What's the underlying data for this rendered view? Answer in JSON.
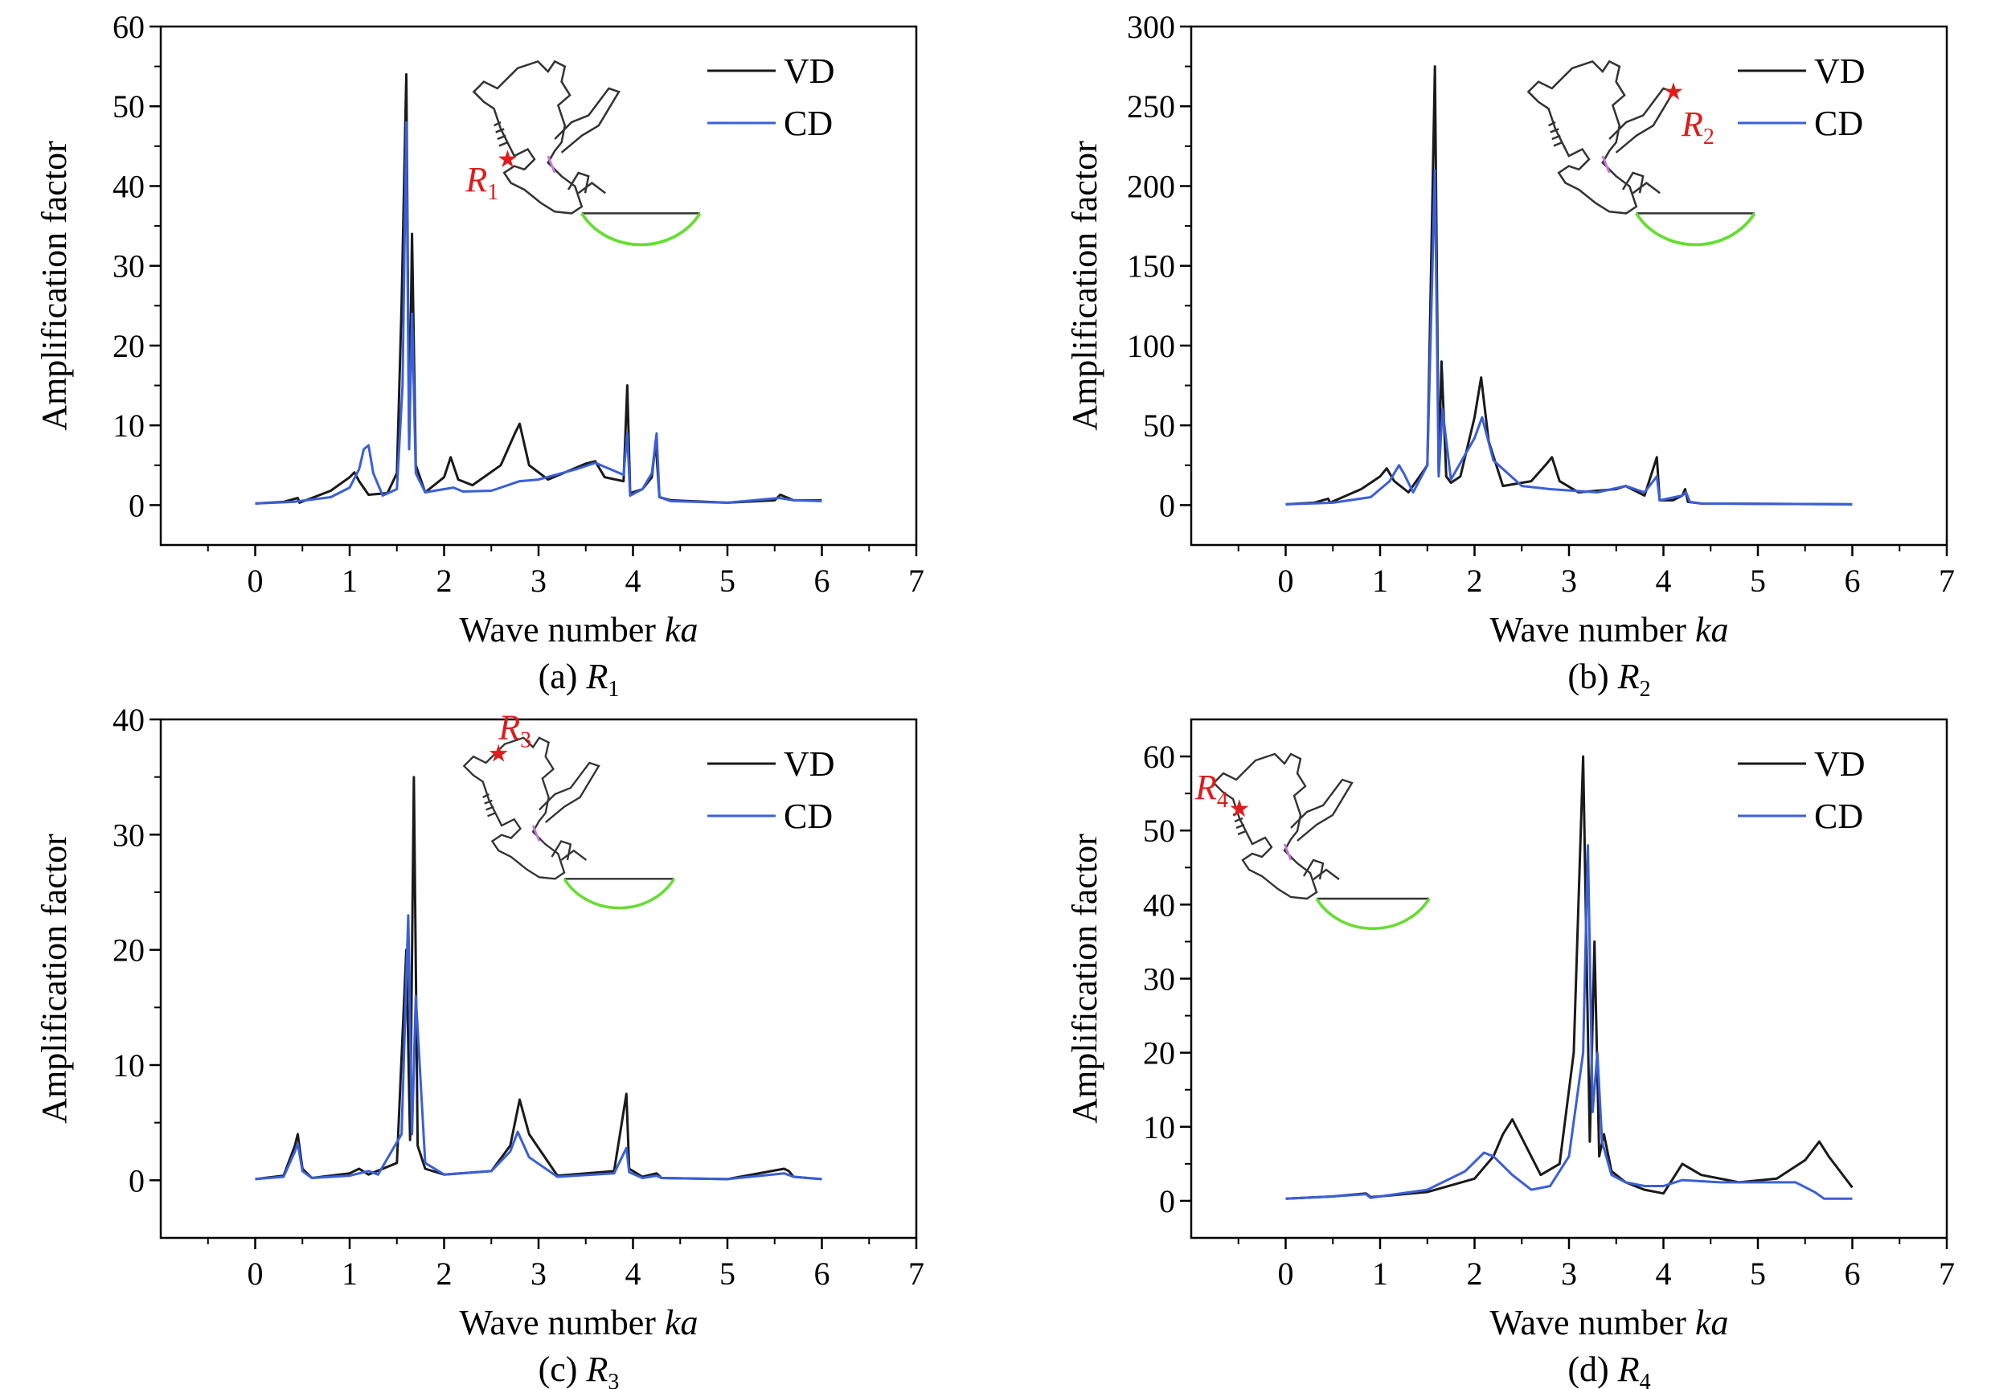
{
  "colors": {
    "vd": "#1a1a1a",
    "cd": "#3a5fd8",
    "marker": "#e01b1b",
    "breakwater": "#66dd33",
    "gate": "#c77ad6",
    "coast": "#333333"
  },
  "chart_data": [
    {
      "type": "line",
      "caption": "(a) R",
      "caption_sub": "1",
      "xlabel": "Wave number ",
      "xlabel_italic": "ka",
      "ylabel": "Amplification factor",
      "xlim": [
        -1,
        7
      ],
      "ylim": [
        -5,
        60
      ],
      "xticks": [
        "0",
        "1",
        "2",
        "3",
        "4",
        "5",
        "6",
        "7"
      ],
      "yticks": [
        "0",
        "10",
        "20",
        "30",
        "40",
        "50",
        "60"
      ],
      "legend_position": "top-right",
      "location_label": "R",
      "location_sub": "1",
      "series": [
        {
          "name": "VD",
          "color": "#1a1a1a",
          "x": [
            0,
            0.3,
            0.45,
            0.47,
            0.8,
            1.0,
            1.05,
            1.1,
            1.2,
            1.4,
            1.5,
            1.55,
            1.6,
            1.63,
            1.66,
            1.7,
            1.8,
            2.0,
            2.07,
            2.15,
            2.3,
            2.6,
            2.75,
            2.8,
            2.9,
            3.1,
            3.5,
            3.6,
            3.7,
            3.9,
            3.94,
            3.97,
            4.1,
            4.2,
            4.24,
            4.28,
            4.4,
            5.0,
            5.5,
            5.56,
            5.7,
            6.0
          ],
          "y": [
            0.2,
            0.4,
            0.9,
            0.3,
            1.8,
            3.5,
            4.1,
            3.0,
            1.3,
            1.5,
            4.0,
            25,
            54,
            8,
            34,
            5,
            1.6,
            3.5,
            6.0,
            3.2,
            2.5,
            5.0,
            9.0,
            10.2,
            5.0,
            3.2,
            5.2,
            5.5,
            3.5,
            3.0,
            15,
            1.5,
            2.0,
            3.5,
            8.0,
            1.0,
            0.6,
            0.3,
            0.6,
            1.3,
            0.6,
            0.6
          ]
        },
        {
          "name": "CD",
          "color": "#3a5fd8",
          "x": [
            0,
            0.4,
            0.8,
            1.0,
            1.1,
            1.15,
            1.2,
            1.25,
            1.35,
            1.5,
            1.56,
            1.6,
            1.63,
            1.66,
            1.7,
            1.8,
            2.0,
            2.1,
            2.2,
            2.5,
            2.8,
            3.0,
            3.4,
            3.6,
            3.7,
            3.9,
            3.94,
            3.97,
            4.1,
            4.2,
            4.25,
            4.28,
            4.4,
            5.0,
            5.55,
            5.7,
            6.0
          ],
          "y": [
            0.2,
            0.4,
            1.0,
            2.2,
            4.5,
            7.0,
            7.5,
            4.0,
            1.2,
            2.0,
            15,
            48,
            7,
            24,
            4,
            1.6,
            2.0,
            2.2,
            1.7,
            1.8,
            3.0,
            3.2,
            4.5,
            5.3,
            4.8,
            3.8,
            9.0,
            1.2,
            2.0,
            4.0,
            9.0,
            1.0,
            0.5,
            0.3,
            0.9,
            0.6,
            0.5
          ]
        }
      ]
    },
    {
      "type": "line",
      "caption": "(b) R",
      "caption_sub": "2",
      "xlabel": "Wave number ",
      "xlabel_italic": "ka",
      "ylabel": "Amplification factor",
      "xlim": [
        -1,
        7
      ],
      "ylim": [
        -25,
        300
      ],
      "xticks": [
        "0",
        "1",
        "2",
        "3",
        "4",
        "5",
        "6",
        "7"
      ],
      "yticks": [
        "0",
        "50",
        "100",
        "150",
        "200",
        "250",
        "300"
      ],
      "legend_position": "top-right",
      "location_label": "R",
      "location_sub": "2",
      "series": [
        {
          "name": "VD",
          "color": "#1a1a1a",
          "x": [
            0,
            0.3,
            0.45,
            0.47,
            0.8,
            1.0,
            1.07,
            1.15,
            1.3,
            1.5,
            1.58,
            1.62,
            1.65,
            1.7,
            1.75,
            1.85,
            2.0,
            2.07,
            2.15,
            2.3,
            2.6,
            2.75,
            2.82,
            2.9,
            3.1,
            3.5,
            3.6,
            3.8,
            3.93,
            3.96,
            4.1,
            4.2,
            4.23,
            4.26,
            4.4,
            6.0
          ],
          "y": [
            0.5,
            1.5,
            4,
            1.5,
            10,
            18,
            23,
            15,
            8,
            25,
            275,
            20,
            90,
            18,
            14,
            18,
            55,
            80,
            40,
            12,
            15,
            25,
            30,
            15,
            8,
            10,
            12,
            6,
            30,
            3,
            3,
            6,
            10,
            2,
            1,
            0.5
          ]
        },
        {
          "name": "CD",
          "color": "#3a5fd8",
          "x": [
            0,
            0.5,
            0.9,
            1.1,
            1.2,
            1.25,
            1.35,
            1.5,
            1.58,
            1.62,
            1.66,
            1.75,
            2.0,
            2.08,
            2.2,
            2.5,
            2.8,
            3.3,
            3.6,
            3.8,
            3.93,
            3.96,
            4.2,
            4.24,
            4.28,
            4.4,
            6.0
          ],
          "y": [
            0.5,
            1.5,
            5,
            15,
            25,
            20,
            8,
            25,
            210,
            18,
            60,
            16,
            42,
            55,
            28,
            12,
            10,
            8,
            12,
            8,
            18,
            3,
            6,
            8,
            2,
            1,
            0.5
          ]
        }
      ]
    },
    {
      "type": "line",
      "caption": "(c) R",
      "caption_sub": "3",
      "xlabel": "Wave number ",
      "xlabel_italic": "ka",
      "ylabel": "Amplification factor",
      "xlim": [
        -1,
        7
      ],
      "ylim": [
        -5,
        40
      ],
      "xticks": [
        "0",
        "1",
        "2",
        "3",
        "4",
        "5",
        "6",
        "7"
      ],
      "yticks": [
        "0",
        "10",
        "20",
        "30",
        "40"
      ],
      "legend_position": "top-right",
      "location_label": "R",
      "location_sub": "3",
      "series": [
        {
          "name": "VD",
          "color": "#1a1a1a",
          "x": [
            0,
            0.3,
            0.42,
            0.45,
            0.5,
            0.6,
            1.0,
            1.1,
            1.2,
            1.5,
            1.6,
            1.64,
            1.68,
            1.72,
            1.8,
            2.0,
            2.5,
            2.7,
            2.8,
            2.9,
            3.2,
            3.8,
            3.93,
            3.96,
            4.1,
            4.25,
            4.3,
            5.0,
            5.6,
            5.65,
            5.7,
            6.0
          ],
          "y": [
            0.1,
            0.4,
            3.0,
            4.0,
            1.0,
            0.2,
            0.6,
            1.0,
            0.5,
            1.5,
            20,
            3.5,
            35,
            3.0,
            1.0,
            0.5,
            0.8,
            3.0,
            7.0,
            4.0,
            0.4,
            0.8,
            7.5,
            1.0,
            0.3,
            0.6,
            0.2,
            0.1,
            1.0,
            0.8,
            0.3,
            0.1
          ]
        },
        {
          "name": "CD",
          "color": "#3a5fd8",
          "x": [
            0,
            0.3,
            0.42,
            0.45,
            0.5,
            0.6,
            1.0,
            1.2,
            1.3,
            1.55,
            1.62,
            1.66,
            1.7,
            1.8,
            2.0,
            2.5,
            2.7,
            2.78,
            2.9,
            3.2,
            3.8,
            3.93,
            3.96,
            4.1,
            4.25,
            4.3,
            5.0,
            5.6,
            5.7,
            6.0
          ],
          "y": [
            0.1,
            0.3,
            2.5,
            3.2,
            0.8,
            0.2,
            0.4,
            0.8,
            0.5,
            4.0,
            23,
            4.0,
            16,
            1.5,
            0.5,
            0.8,
            2.5,
            4.2,
            2.0,
            0.3,
            0.6,
            2.8,
            0.7,
            0.2,
            0.4,
            0.2,
            0.1,
            0.6,
            0.3,
            0.1
          ]
        }
      ]
    },
    {
      "type": "line",
      "caption": "(d) R",
      "caption_sub": "4",
      "xlabel": "Wave number ",
      "xlabel_italic": "ka",
      "ylabel": "Amplification factor",
      "xlim": [
        -1,
        7
      ],
      "ylim": [
        -5,
        65
      ],
      "xticks": [
        "0",
        "1",
        "2",
        "3",
        "4",
        "5",
        "6",
        "7"
      ],
      "yticks": [
        "0",
        "10",
        "20",
        "30",
        "40",
        "50",
        "60"
      ],
      "legend_position": "top-right",
      "location_label": "R",
      "location_sub": "4",
      "series": [
        {
          "name": "VD",
          "color": "#1a1a1a",
          "x": [
            0,
            0.5,
            0.85,
            0.9,
            1.0,
            1.5,
            2.0,
            2.2,
            2.3,
            2.4,
            2.5,
            2.7,
            2.9,
            3.05,
            3.15,
            3.22,
            3.27,
            3.32,
            3.37,
            3.45,
            3.6,
            3.8,
            4.0,
            4.1,
            4.2,
            4.4,
            4.8,
            5.2,
            5.5,
            5.65,
            5.75,
            6.0
          ],
          "y": [
            0.3,
            0.6,
            1.0,
            0.5,
            0.6,
            1.2,
            3.0,
            6.0,
            9.0,
            11.0,
            8.5,
            3.5,
            5.0,
            20,
            60,
            8.0,
            35,
            6.0,
            9.0,
            4.0,
            2.5,
            1.5,
            1.0,
            3.0,
            5.0,
            3.5,
            2.5,
            3.0,
            5.5,
            8.0,
            6.0,
            1.8
          ]
        },
        {
          "name": "CD",
          "color": "#3a5fd8",
          "x": [
            0,
            0.5,
            0.85,
            0.9,
            1.0,
            1.5,
            1.9,
            2.1,
            2.2,
            2.4,
            2.6,
            2.8,
            3.0,
            3.15,
            3.2,
            3.25,
            3.3,
            3.35,
            3.45,
            3.6,
            3.8,
            4.0,
            4.2,
            4.6,
            5.0,
            5.4,
            5.6,
            5.7,
            6.0
          ],
          "y": [
            0.3,
            0.6,
            0.9,
            0.4,
            0.6,
            1.5,
            4.0,
            6.5,
            6.0,
            3.5,
            1.5,
            2.0,
            6.0,
            20,
            48,
            12,
            20,
            8.0,
            3.5,
            2.5,
            2.0,
            2.0,
            2.8,
            2.5,
            2.5,
            2.5,
            1.2,
            0.3,
            0.3
          ]
        }
      ]
    }
  ]
}
